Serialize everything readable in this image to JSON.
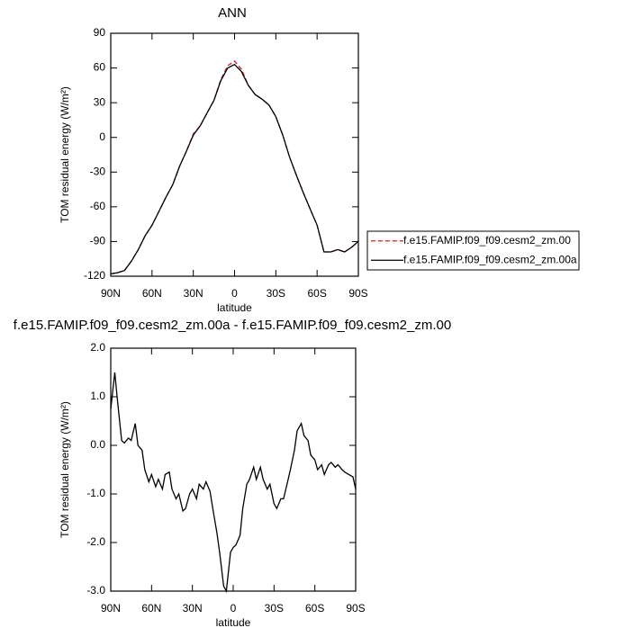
{
  "chart_data": [
    {
      "type": "line",
      "title": "ANN",
      "xlabel": "latitude",
      "ylabel": "TOM residual energy (W/m²)",
      "x": [
        90,
        85,
        80,
        75,
        70,
        65,
        60,
        55,
        50,
        45,
        40,
        35,
        30,
        25,
        20,
        15,
        10,
        5,
        0,
        -5,
        -10,
        -15,
        -20,
        -25,
        -30,
        -35,
        -40,
        -45,
        -50,
        -55,
        -60,
        -65,
        -70,
        -75,
        -80,
        -85,
        -90
      ],
      "xlim": [
        90,
        -90
      ],
      "xticks": [
        {
          "value": 90,
          "label": "90N"
        },
        {
          "value": 60,
          "label": "60N"
        },
        {
          "value": 30,
          "label": "30N"
        },
        0,
        {
          "value": -30,
          "label": "30S"
        },
        {
          "value": -60,
          "label": "60S"
        },
        {
          "value": -90,
          "label": "90S"
        }
      ],
      "ylim": [
        -120,
        90
      ],
      "yticks": [
        -120,
        -90,
        -60,
        -30,
        0,
        30,
        60,
        90
      ],
      "legend": "right",
      "series": [
        {
          "name": "f.e15.FAMIP.f09_f09.cesm2_zm.00",
          "color": "#d42020",
          "dash": "dashed",
          "values": [
            -118,
            -117,
            -115,
            -107,
            -97,
            -85,
            -76,
            -64,
            -52,
            -41,
            -25,
            -12,
            3,
            10,
            21,
            32,
            50,
            62,
            66,
            59,
            45,
            37,
            33,
            28,
            18,
            2,
            -17,
            -33,
            -48,
            -62,
            -76,
            -99,
            -99,
            -97,
            -99,
            -95,
            -90
          ]
        },
        {
          "name": "f.e15.FAMIP.f09_f09.cesm2_zm.00a",
          "color": "#000000",
          "dash": "solid",
          "values": [
            -118,
            -117,
            -115,
            -107,
            -97,
            -85,
            -76,
            -64,
            -52,
            -41,
            -25,
            -12,
            2,
            10,
            21,
            32,
            49,
            60,
            63,
            57,
            45,
            37,
            33,
            28,
            18,
            2,
            -17,
            -33,
            -48,
            -62,
            -76,
            -99,
            -99,
            -97,
            -99,
            -95,
            -90
          ]
        }
      ]
    },
    {
      "type": "line",
      "title": "f.e15.FAMIP.f09_f09.cesm2_zm.00a - f.e15.FAMIP.f09_f09.cesm2_zm.00",
      "xlabel": "latitude",
      "ylabel": "TOM residual energy (W/m²)",
      "x": [
        90,
        87,
        85,
        82,
        80,
        77,
        75,
        72,
        70,
        67,
        65,
        62,
        60,
        57,
        55,
        52,
        50,
        47,
        45,
        42,
        40,
        37,
        35,
        32,
        30,
        27,
        25,
        22,
        20,
        17,
        15,
        12,
        10,
        7,
        5,
        2,
        0,
        -2,
        -5,
        -7,
        -10,
        -12,
        -15,
        -17,
        -20,
        -22,
        -25,
        -27,
        -30,
        -32,
        -35,
        -37,
        -40,
        -42,
        -45,
        -47,
        -50,
        -52,
        -55,
        -57,
        -60,
        -62,
        -65,
        -67,
        -70,
        -72,
        -75,
        -77,
        -80,
        -82,
        -85,
        -88,
        -90
      ],
      "xlim": [
        90,
        -90
      ],
      "xticks": [
        {
          "value": 90,
          "label": "90N"
        },
        {
          "value": 60,
          "label": "60N"
        },
        {
          "value": 30,
          "label": "30N"
        },
        0,
        {
          "value": -30,
          "label": "30S"
        },
        {
          "value": -60,
          "label": "60S"
        },
        {
          "value": -90,
          "label": "90S"
        }
      ],
      "ylim": [
        -3,
        2
      ],
      "yticks": [
        {
          "value": -3,
          "label": "-3.0"
        },
        {
          "value": -2,
          "label": "-2.0"
        },
        {
          "value": -1,
          "label": "-1.0"
        },
        {
          "value": 0,
          "label": "0.0"
        },
        {
          "value": 1,
          "label": "1.0"
        },
        {
          "value": 2,
          "label": "2.0"
        }
      ],
      "series": [
        {
          "color": "#000000",
          "dash": "solid",
          "values": [
            0.75,
            1.5,
            0.9,
            0.1,
            0.05,
            0.15,
            0.1,
            0.45,
            0.0,
            -0.1,
            -0.5,
            -0.75,
            -0.6,
            -0.85,
            -0.7,
            -0.9,
            -0.6,
            -0.55,
            -0.9,
            -1.1,
            -1.0,
            -1.35,
            -1.3,
            -1.0,
            -0.9,
            -1.1,
            -0.8,
            -0.9,
            -0.75,
            -0.95,
            -1.3,
            -1.8,
            -2.2,
            -2.9,
            -3.0,
            -2.2,
            -2.1,
            -2.05,
            -1.85,
            -1.3,
            -0.8,
            -0.7,
            -0.45,
            -0.7,
            -0.45,
            -0.7,
            -0.9,
            -0.8,
            -1.2,
            -1.3,
            -1.1,
            -1.1,
            -0.75,
            -0.5,
            -0.1,
            0.3,
            0.45,
            0.2,
            0.1,
            -0.2,
            -0.3,
            -0.5,
            -0.4,
            -0.6,
            -0.4,
            -0.35,
            -0.45,
            -0.4,
            -0.5,
            -0.55,
            -0.6,
            -0.65,
            -0.9
          ]
        }
      ]
    }
  ]
}
